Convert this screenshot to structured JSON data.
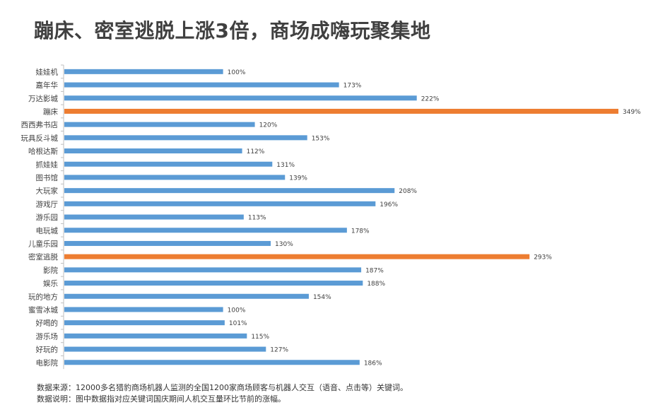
{
  "chart_data": {
    "type": "bar",
    "orientation": "horizontal",
    "title": "蹦床、密室逃脱上涨3倍，商场成嗨玩聚集地",
    "categories": [
      "娃娃机",
      "嘉年华",
      "万达影城",
      "蹦床",
      "西西弗书店",
      "玩具反斗城",
      "哈根达斯",
      "抓娃娃",
      "图书馆",
      "大玩家",
      "游戏厅",
      "游乐园",
      "电玩城",
      "儿童乐园",
      "密室逃脱",
      "影院",
      "娱乐",
      "玩的地方",
      "蜜雪冰城",
      "好喝的",
      "游乐场",
      "好玩的",
      "电影院"
    ],
    "values": [
      100,
      173,
      222,
      349,
      120,
      153,
      112,
      131,
      139,
      208,
      196,
      113,
      178,
      130,
      293,
      187,
      188,
      154,
      100,
      101,
      115,
      127,
      186
    ],
    "labels": [
      "100%",
      "173%",
      "222%",
      "349%",
      "120%",
      "153%",
      "112%",
      "131%",
      "139%",
      "208%",
      "196%",
      "113%",
      "178%",
      "130%",
      "293%",
      "187%",
      "188%",
      "154%",
      "100%",
      "101%",
      "115%",
      "127%",
      "186%"
    ],
    "highlight": [
      "蹦床",
      "密室逃脱"
    ],
    "xlim": [
      0,
      349
    ],
    "xlabel": "",
    "ylabel": "",
    "colors": {
      "default": "#5b9bd5",
      "highlight": "#ed7d31"
    }
  },
  "notes": {
    "source": "数据来源：12000多名猎豹商场机器人监测的全国1200家商场顾客与机器人交互（语音、点击等）关键词。",
    "explanation": "数据说明：图中数据指对应关键词国庆期间人机交互量环比节前的涨幅。"
  }
}
